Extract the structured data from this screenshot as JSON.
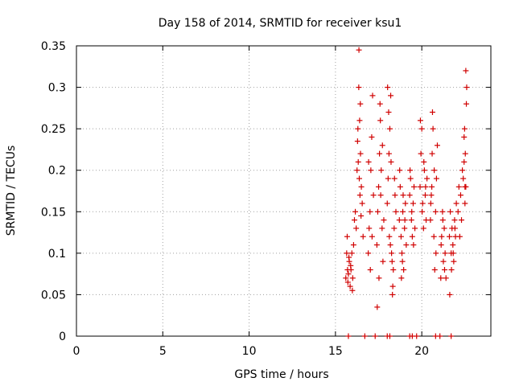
{
  "chart_data": {
    "type": "scatter",
    "title": "Day 158 of 2014, SRMTID for receiver ksu1",
    "xlabel": "GPS time / hours",
    "ylabel": "SRMTID / TECUs",
    "xlim": [
      0,
      24
    ],
    "ylim": [
      0,
      0.35
    ],
    "x_ticks": [
      0,
      5,
      10,
      15,
      20
    ],
    "x_tick_labels": [
      "0",
      "5",
      "10",
      "15",
      "20"
    ],
    "y_ticks": [
      0,
      0.05,
      0.1,
      0.15,
      0.2,
      0.25,
      0.3,
      0.35
    ],
    "y_tick_labels": [
      "0",
      "0.05",
      "0.1",
      "0.15",
      "0.2",
      "0.25",
      "0.3",
      "0.35"
    ],
    "grid": true,
    "marker": "+",
    "series_color": "#d00000",
    "series": [
      {
        "name": "SRMTID",
        "x": [
          15.6,
          15.65,
          15.7,
          15.72,
          15.75,
          15.8,
          15.85,
          15.9,
          15.95,
          16.0,
          15.68,
          15.78,
          15.88,
          15.98,
          16.05,
          16.1,
          16.15,
          16.2,
          16.25,
          16.3,
          16.35,
          16.4,
          16.45,
          16.5,
          16.55,
          16.6,
          16.28,
          16.32,
          16.38,
          16.42,
          16.48,
          16.36,
          16.44,
          16.9,
          16.95,
          17.0,
          17.05,
          17.1,
          17.15,
          17.2,
          16.92,
          17.02,
          17.12,
          17.4,
          17.45,
          17.5,
          17.55,
          17.6,
          17.65,
          17.7,
          17.75,
          17.8,
          17.42,
          17.52,
          17.62,
          17.72,
          17.58,
          18.0,
          18.05,
          18.1,
          18.15,
          18.2,
          18.25,
          18.3,
          18.35,
          18.4,
          18.45,
          18.5,
          18.02,
          18.12,
          18.22,
          18.32,
          18.42,
          18.08,
          18.18,
          18.28,
          18.7,
          18.75,
          18.8,
          18.85,
          18.9,
          18.95,
          19.0,
          19.05,
          19.1,
          18.72,
          18.82,
          18.92,
          19.02,
          18.88,
          19.3,
          19.35,
          19.4,
          19.45,
          19.5,
          19.55,
          19.6,
          19.32,
          19.42,
          19.52,
          19.9,
          19.95,
          20.0,
          20.05,
          20.1,
          20.15,
          20.2,
          20.25,
          20.3,
          19.92,
          20.02,
          20.12,
          20.22,
          20.5,
          20.55,
          20.6,
          20.65,
          20.7,
          20.75,
          20.8,
          20.85,
          20.9,
          20.52,
          20.62,
          20.72,
          20.82,
          20.58,
          21.1,
          21.15,
          21.2,
          21.25,
          21.3,
          21.35,
          21.4,
          21.12,
          21.22,
          21.32,
          21.6,
          21.65,
          21.7,
          21.75,
          21.8,
          21.85,
          21.9,
          21.95,
          22.0,
          21.62,
          21.72,
          21.82,
          21.92,
          22.1,
          22.15,
          22.2,
          22.25,
          22.3,
          22.35,
          22.4,
          22.45,
          22.5,
          22.55,
          22.6,
          22.48,
          22.52,
          22.58,
          22.45,
          22.55,
          22.5
        ],
        "y": [
          0.07,
          0.1,
          0.08,
          0.065,
          0.075,
          0.09,
          0.06,
          0.08,
          0.1,
          0.07,
          0.12,
          0.095,
          0.085,
          0.055,
          0.11,
          0.14,
          0.15,
          0.13,
          0.2,
          0.25,
          0.3,
          0.26,
          0.22,
          0.18,
          0.16,
          0.12,
          0.235,
          0.21,
          0.19,
          0.17,
          0.145,
          0.345,
          0.28,
          0.1,
          0.13,
          0.15,
          0.2,
          0.24,
          0.29,
          0.17,
          0.21,
          0.08,
          0.12,
          0.11,
          0.15,
          0.18,
          0.22,
          0.26,
          0.2,
          0.13,
          0.09,
          0.14,
          0.035,
          0.07,
          0.17,
          0.23,
          0.28,
          0.16,
          0.19,
          0.22,
          0.25,
          0.29,
          0.1,
          0.05,
          0.08,
          0.13,
          0.17,
          0.15,
          0.3,
          0.12,
          0.21,
          0.06,
          0.19,
          0.27,
          0.11,
          0.09,
          0.14,
          0.18,
          0.12,
          0.1,
          0.15,
          0.08,
          0.13,
          0.16,
          0.11,
          0.2,
          0.07,
          0.17,
          0.14,
          0.09,
          0.17,
          0.19,
          0.14,
          0.12,
          0.16,
          0.18,
          0.13,
          0.2,
          0.15,
          0.11,
          0.18,
          0.22,
          0.25,
          0.16,
          0.13,
          0.2,
          0.17,
          0.14,
          0.19,
          0.26,
          0.15,
          0.21,
          0.18,
          0.14,
          0.17,
          0.22,
          0.25,
          0.12,
          0.08,
          0.15,
          0.19,
          0.23,
          0.16,
          0.27,
          0.2,
          0.1,
          0.18,
          0.07,
          0.12,
          0.15,
          0.09,
          0.13,
          0.1,
          0.07,
          0.11,
          0.14,
          0.08,
          0.12,
          0.15,
          0.1,
          0.13,
          0.11,
          0.09,
          0.14,
          0.12,
          0.16,
          0.05,
          0.08,
          0.1,
          0.13,
          0.15,
          0.18,
          0.12,
          0.17,
          0.14,
          0.2,
          0.19,
          0.21,
          0.18,
          0.32,
          0.3,
          0.25,
          0.22,
          0.28,
          0.24,
          0.18,
          0.16
        ],
        "ticks_at_zero_x": [
          15.75,
          16.7,
          17.3,
          18.0,
          18.15,
          19.3,
          19.45,
          19.7,
          20.8,
          21.05,
          21.7
        ]
      }
    ]
  }
}
